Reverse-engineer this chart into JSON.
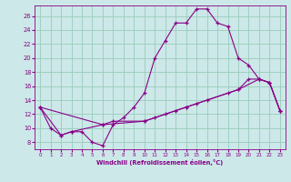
{
  "xlabel": "Windchill (Refroidissement éolien,°C)",
  "bg_color": "#cce8e8",
  "line_color": "#880088",
  "grid_color": "#99ccbb",
  "xlim": [
    -0.5,
    23.5
  ],
  "ylim": [
    7,
    27.5
  ],
  "yticks": [
    8,
    10,
    12,
    14,
    16,
    18,
    20,
    22,
    24,
    26
  ],
  "xticks": [
    0,
    1,
    2,
    3,
    4,
    5,
    6,
    7,
    8,
    9,
    10,
    11,
    12,
    13,
    14,
    15,
    16,
    17,
    18,
    19,
    20,
    21,
    22,
    23
  ],
  "series1_x": [
    0,
    1,
    2,
    3,
    4,
    5,
    6,
    7,
    8,
    9,
    10,
    11,
    12,
    13,
    14,
    15,
    16,
    17,
    18,
    19,
    20,
    21,
    22,
    23
  ],
  "series1_y": [
    13,
    10,
    9,
    9.5,
    9.5,
    8,
    7.5,
    10.5,
    11.5,
    13,
    15,
    20,
    22.5,
    25,
    25,
    27,
    27,
    25,
    24.5,
    20,
    19,
    17,
    16.5,
    12.5
  ],
  "series2_x": [
    0,
    2,
    3,
    6,
    7,
    10,
    11,
    12,
    13,
    14,
    15,
    16,
    18,
    19,
    20,
    21,
    22,
    23
  ],
  "series2_y": [
    13,
    9,
    9.5,
    10.5,
    11,
    11,
    11.5,
    12,
    12.5,
    13,
    13.5,
    14,
    15,
    15.5,
    17,
    17,
    16.5,
    12.5
  ],
  "series3_x": [
    0,
    6,
    10,
    14,
    19,
    21,
    22,
    23
  ],
  "series3_y": [
    13,
    10.5,
    11,
    13,
    15.5,
    17,
    16.5,
    12.5
  ]
}
